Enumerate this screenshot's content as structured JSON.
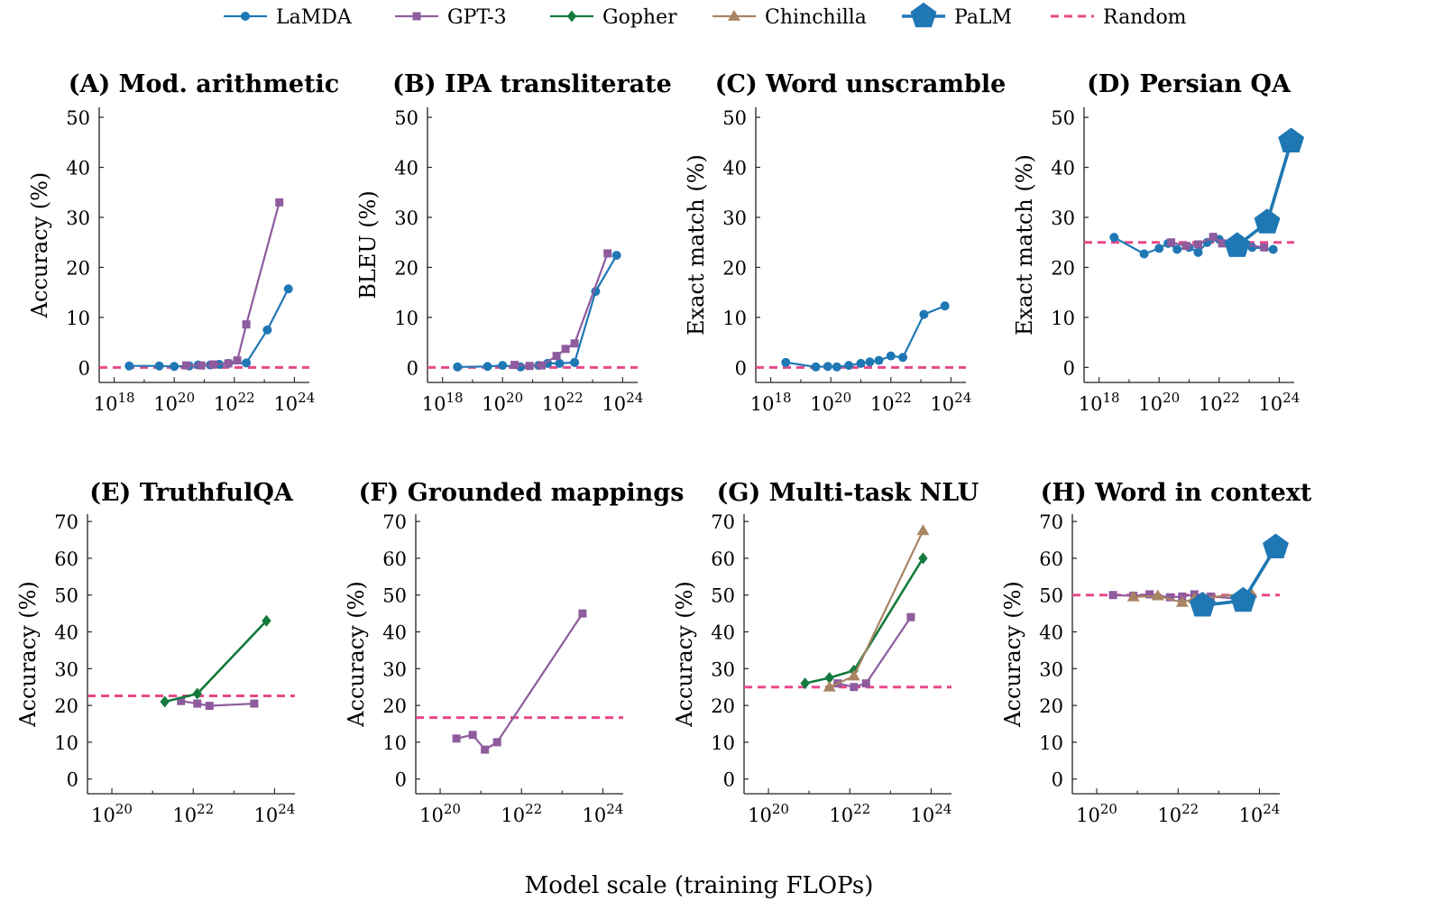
{
  "figure": {
    "xlabel_common": "Model scale (training FLOPs)",
    "colors": {
      "LaMDA": "#1f77b4",
      "GPT-3": "#8e5c9e",
      "Gopher": "#137a3c",
      "Chinchilla": "#a88462",
      "PaLM": "#1f77b4",
      "Random": "#e8488a"
    },
    "legend": [
      {
        "name": "LaMDA",
        "marker": "circle"
      },
      {
        "name": "GPT-3",
        "marker": "square"
      },
      {
        "name": "Gopher",
        "marker": "diamond"
      },
      {
        "name": "Chinchilla",
        "marker": "triangle"
      },
      {
        "name": "PaLM",
        "marker": "pentagon"
      },
      {
        "name": "Random",
        "marker": "dashed"
      }
    ]
  },
  "chart_data": [
    {
      "type": "line",
      "title": "(A) Mod. arithmetic",
      "ylabel": "Accuracy (%)",
      "xscale": "log",
      "xlim_exp": [
        17.5,
        24.5
      ],
      "xticks_exp": [
        18,
        20,
        22,
        24
      ],
      "ylim": [
        -3,
        52
      ],
      "yticks": [
        0,
        10,
        20,
        30,
        40,
        50
      ],
      "random": 0,
      "series": [
        {
          "name": "LaMDA",
          "points": [
            [
              18.5,
              0.3
            ],
            [
              19.5,
              0.3
            ],
            [
              20.0,
              0.2
            ],
            [
              20.5,
              0.3
            ],
            [
              20.8,
              0.5
            ],
            [
              21.2,
              0.5
            ],
            [
              21.5,
              0.6
            ],
            [
              21.8,
              0.8
            ],
            [
              22.4,
              0.9
            ],
            [
              23.1,
              7.5
            ],
            [
              23.8,
              15.7
            ]
          ]
        },
        {
          "name": "GPT-3",
          "points": [
            [
              20.4,
              0.4
            ],
            [
              20.9,
              0.4
            ],
            [
              21.3,
              0.6
            ],
            [
              21.8,
              0.8
            ],
            [
              22.1,
              1.4
            ],
            [
              22.4,
              8.6
            ],
            [
              23.5,
              33.0
            ]
          ]
        }
      ]
    },
    {
      "type": "line",
      "title": "(B) IPA transliterate",
      "ylabel": "BLEU (%)",
      "xscale": "log",
      "xlim_exp": [
        17.5,
        24.5
      ],
      "xticks_exp": [
        18,
        20,
        22,
        24
      ],
      "ylim": [
        -3,
        52
      ],
      "yticks": [
        0,
        10,
        20,
        30,
        40,
        50
      ],
      "random": 0,
      "series": [
        {
          "name": "LaMDA",
          "points": [
            [
              18.5,
              0.1
            ],
            [
              19.5,
              0.2
            ],
            [
              20.0,
              0.4
            ],
            [
              20.6,
              0.1
            ],
            [
              21.2,
              0.4
            ],
            [
              21.5,
              0.8
            ],
            [
              21.9,
              0.8
            ],
            [
              22.4,
              1.0
            ],
            [
              23.1,
              15.2
            ],
            [
              23.8,
              22.4
            ]
          ]
        },
        {
          "name": "GPT-3",
          "points": [
            [
              20.4,
              0.5
            ],
            [
              20.9,
              0.3
            ],
            [
              21.3,
              0.4
            ],
            [
              21.8,
              2.3
            ],
            [
              22.1,
              3.7
            ],
            [
              22.4,
              4.8
            ],
            [
              23.5,
              22.8
            ]
          ]
        }
      ]
    },
    {
      "type": "line",
      "title": "(C) Word unscramble",
      "ylabel": "Exact match (%)",
      "xscale": "log",
      "xlim_exp": [
        17.5,
        24.5
      ],
      "xticks_exp": [
        18,
        20,
        22,
        24
      ],
      "ylim": [
        -3,
        52
      ],
      "yticks": [
        0,
        10,
        20,
        30,
        40,
        50
      ],
      "random": 0,
      "series": [
        {
          "name": "LaMDA",
          "points": [
            [
              18.5,
              1.0
            ],
            [
              19.5,
              0.1
            ],
            [
              19.9,
              0.2
            ],
            [
              20.2,
              0.1
            ],
            [
              20.6,
              0.4
            ],
            [
              21.0,
              0.8
            ],
            [
              21.3,
              1.1
            ],
            [
              21.6,
              1.4
            ],
            [
              22.0,
              2.3
            ],
            [
              22.4,
              2.0
            ],
            [
              23.1,
              10.6
            ],
            [
              23.8,
              12.3
            ]
          ]
        }
      ]
    },
    {
      "type": "line",
      "title": "(D) Persian QA",
      "ylabel": "Exact match (%)",
      "xscale": "log",
      "xlim_exp": [
        17.5,
        24.5
      ],
      "xticks_exp": [
        18,
        20,
        22,
        24
      ],
      "ylim": [
        -3,
        52
      ],
      "yticks": [
        0,
        10,
        20,
        30,
        40,
        50
      ],
      "random": 25,
      "series": [
        {
          "name": "LaMDA",
          "points": [
            [
              18.5,
              26.0
            ],
            [
              19.5,
              22.7
            ],
            [
              20.0,
              23.8
            ],
            [
              20.3,
              24.8
            ],
            [
              20.6,
              23.6
            ],
            [
              21.0,
              24.0
            ],
            [
              21.3,
              23.0
            ],
            [
              21.6,
              25.0
            ],
            [
              22.0,
              25.6
            ],
            [
              22.4,
              24.4
            ],
            [
              23.1,
              24.0
            ],
            [
              23.8,
              23.6
            ]
          ]
        },
        {
          "name": "GPT-3",
          "points": [
            [
              20.4,
              25.0
            ],
            [
              20.9,
              24.3
            ],
            [
              21.3,
              24.6
            ],
            [
              21.8,
              26.1
            ],
            [
              22.1,
              24.8
            ],
            [
              22.4,
              24.9
            ],
            [
              23.5,
              24.0
            ]
          ]
        },
        {
          "name": "PaLM",
          "points": [
            [
              22.6,
              24.3
            ],
            [
              23.6,
              29.0
            ],
            [
              24.4,
              45.2
            ]
          ]
        }
      ]
    },
    {
      "type": "line",
      "title": "(E) TruthfulQA",
      "ylabel": "Accuracy (%)",
      "xscale": "log",
      "xlim_exp": [
        19.4,
        24.5
      ],
      "xticks_exp": [
        20,
        22,
        24
      ],
      "ylim": [
        -4,
        72
      ],
      "yticks": [
        0,
        10,
        20,
        30,
        40,
        50,
        60,
        70
      ],
      "random": 22.6,
      "series": [
        {
          "name": "GPT-3",
          "points": [
            [
              21.7,
              21.2
            ],
            [
              22.1,
              20.5
            ],
            [
              22.4,
              19.9
            ],
            [
              23.5,
              20.5
            ]
          ]
        },
        {
          "name": "Gopher",
          "points": [
            [
              21.3,
              21.0
            ],
            [
              22.1,
              23.2
            ],
            [
              23.8,
              43.0
            ]
          ]
        }
      ]
    },
    {
      "type": "line",
      "title": "(F) Grounded mappings",
      "ylabel": "Accuracy (%)",
      "xscale": "log",
      "xlim_exp": [
        19.4,
        24.5
      ],
      "xticks_exp": [
        20,
        22,
        24
      ],
      "ylim": [
        -4,
        72
      ],
      "yticks": [
        0,
        10,
        20,
        30,
        40,
        50,
        60,
        70
      ],
      "random": 16.7,
      "series": [
        {
          "name": "GPT-3",
          "points": [
            [
              20.4,
              11.0
            ],
            [
              20.8,
              12.0
            ],
            [
              21.1,
              8.0
            ],
            [
              21.4,
              10.0
            ],
            [
              23.5,
              45.0
            ]
          ]
        }
      ]
    },
    {
      "type": "line",
      "title": "(G) Multi-task NLU",
      "ylabel": "Accuracy (%)",
      "xscale": "log",
      "xlim_exp": [
        19.4,
        24.5
      ],
      "xticks_exp": [
        20,
        22,
        24
      ],
      "ylim": [
        -4,
        72
      ],
      "yticks": [
        0,
        10,
        20,
        30,
        40,
        50,
        60,
        70
      ],
      "random": 25,
      "series": [
        {
          "name": "GPT-3",
          "points": [
            [
              21.7,
              26.0
            ],
            [
              22.1,
              25.0
            ],
            [
              22.4,
              26.0
            ],
            [
              23.5,
              44.0
            ]
          ]
        },
        {
          "name": "Gopher",
          "points": [
            [
              20.9,
              26.0
            ],
            [
              21.5,
              27.5
            ],
            [
              22.1,
              29.5
            ],
            [
              23.8,
              60.0
            ]
          ]
        },
        {
          "name": "Chinchilla",
          "points": [
            [
              21.5,
              25.0
            ],
            [
              22.1,
              28.0
            ],
            [
              23.8,
              67.5
            ]
          ]
        }
      ]
    },
    {
      "type": "line",
      "title": "(H) Word in context",
      "ylabel": "Accuracy (%)",
      "xscale": "log",
      "xlim_exp": [
        19.4,
        24.5
      ],
      "xticks_exp": [
        20,
        22,
        24
      ],
      "ylim": [
        -4,
        72
      ],
      "yticks": [
        0,
        10,
        20,
        30,
        40,
        50,
        60,
        70
      ],
      "random": 50,
      "series": [
        {
          "name": "GPT-3",
          "points": [
            [
              20.4,
              50.0
            ],
            [
              20.9,
              49.8
            ],
            [
              21.3,
              50.2
            ],
            [
              21.8,
              49.4
            ],
            [
              22.1,
              49.6
            ],
            [
              22.4,
              50.2
            ],
            [
              22.8,
              49.6
            ],
            [
              23.5,
              49.0
            ]
          ]
        },
        {
          "name": "Chinchilla",
          "points": [
            [
              20.9,
              49.5
            ],
            [
              21.5,
              49.8
            ],
            [
              22.1,
              48.0
            ],
            [
              22.4,
              49.0
            ],
            [
              23.8,
              50.5
            ]
          ]
        },
        {
          "name": "PaLM",
          "points": [
            [
              22.6,
              47.2
            ],
            [
              23.6,
              48.5
            ],
            [
              24.4,
              63.0
            ]
          ]
        }
      ]
    }
  ]
}
